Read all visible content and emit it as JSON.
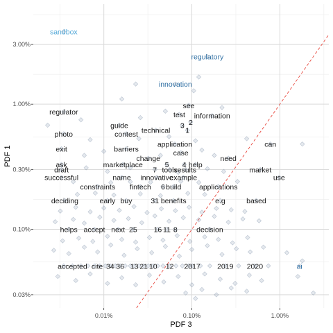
{
  "chart_data": {
    "type": "scatter",
    "title": "",
    "xlabel": "PDF 3",
    "ylabel": "PDF 1",
    "x_scale": "log10",
    "y_scale": "log10",
    "xlim": [
      1.58e-05,
      0.036
    ],
    "ylim": [
      0.000235,
      0.063
    ],
    "x_ticks": [
      {
        "value": 0.0001,
        "label": "0.01%"
      },
      {
        "value": 0.001,
        "label": "0.10%"
      },
      {
        "value": 0.01,
        "label": "1.00%"
      }
    ],
    "y_ticks": [
      {
        "value": 0.0003,
        "label": "0.03%"
      },
      {
        "value": 0.001,
        "label": "0.10%"
      },
      {
        "value": 0.003,
        "label": "0.30%"
      },
      {
        "value": 0.01,
        "label": "1.00%"
      },
      {
        "value": 0.03,
        "label": "3.00%"
      }
    ],
    "grid": true,
    "reference_line": {
      "type": "identity",
      "color": "#e8473d",
      "style": "dashed"
    },
    "point_color": "#8a9bb0",
    "colors": {
      "dark": "#1a1a1a",
      "blue": "#2f6fa3",
      "light_blue": "#52a8d8"
    },
    "words": [
      {
        "text": "sandbox",
        "x": 3.5e-05,
        "y": 0.038,
        "color": "light_blue"
      },
      {
        "text": "regulatory",
        "x": 0.0015,
        "y": 0.024,
        "color": "blue"
      },
      {
        "text": "innovation",
        "x": 0.00065,
        "y": 0.0145,
        "color": "blue"
      },
      {
        "text": "regulator",
        "x": 3.5e-05,
        "y": 0.0087,
        "color": "dark"
      },
      {
        "text": "test",
        "x": 0.00072,
        "y": 0.0083,
        "color": "dark"
      },
      {
        "text": "see",
        "x": 0.00092,
        "y": 0.0098,
        "color": "dark"
      },
      {
        "text": "information",
        "x": 0.0017,
        "y": 0.0081,
        "color": "dark"
      },
      {
        "text": "2",
        "x": 0.00097,
        "y": 0.0072,
        "color": "dark"
      },
      {
        "text": "3",
        "x": 0.00078,
        "y": 0.0068,
        "color": "dark"
      },
      {
        "text": "1",
        "x": 0.00089,
        "y": 0.0062,
        "color": "dark"
      },
      {
        "text": "guide",
        "x": 0.00015,
        "y": 0.0068,
        "color": "dark"
      },
      {
        "text": "technical",
        "x": 0.00039,
        "y": 0.0062,
        "color": "dark"
      },
      {
        "text": "photo",
        "x": 3.5e-05,
        "y": 0.0058,
        "color": "dark"
      },
      {
        "text": "contest",
        "x": 0.00018,
        "y": 0.0058,
        "color": "dark"
      },
      {
        "text": "application",
        "x": 0.00064,
        "y": 0.0048,
        "color": "dark"
      },
      {
        "text": "can",
        "x": 0.0078,
        "y": 0.0048,
        "color": "dark"
      },
      {
        "text": "exit",
        "x": 3.3e-05,
        "y": 0.0044,
        "color": "dark"
      },
      {
        "text": "barriers",
        "x": 0.00018,
        "y": 0.0044,
        "color": "dark"
      },
      {
        "text": "case",
        "x": 0.00075,
        "y": 0.0041,
        "color": "dark"
      },
      {
        "text": "change",
        "x": 0.00032,
        "y": 0.0037,
        "color": "dark"
      },
      {
        "text": "need",
        "x": 0.0026,
        "y": 0.0037,
        "color": "dark"
      },
      {
        "text": "ask",
        "x": 3.3e-05,
        "y": 0.0033,
        "color": "dark"
      },
      {
        "text": "marketplace",
        "x": 0.000165,
        "y": 0.0033,
        "color": "dark"
      },
      {
        "text": "5",
        "x": 0.00052,
        "y": 0.0033,
        "color": "dark"
      },
      {
        "text": "4",
        "x": 0.00082,
        "y": 0.0033,
        "color": "dark"
      },
      {
        "text": "help",
        "x": 0.0011,
        "y": 0.0033,
        "color": "dark"
      },
      {
        "text": "draft",
        "x": 3.3e-05,
        "y": 0.003,
        "color": "dark"
      },
      {
        "text": "7",
        "x": 0.00038,
        "y": 0.003,
        "color": "dark"
      },
      {
        "text": "tools",
        "x": 0.00056,
        "y": 0.003,
        "color": "dark"
      },
      {
        "text": "results",
        "x": 0.00085,
        "y": 0.003,
        "color": "dark"
      },
      {
        "text": "market",
        "x": 0.006,
        "y": 0.003,
        "color": "dark"
      },
      {
        "text": "successful",
        "x": 3.3e-05,
        "y": 0.0026,
        "color": "dark"
      },
      {
        "text": "name",
        "x": 0.00016,
        "y": 0.0026,
        "color": "dark"
      },
      {
        "text": "innovative",
        "x": 0.0004,
        "y": 0.0026,
        "color": "dark"
      },
      {
        "text": "example",
        "x": 0.0008,
        "y": 0.0026,
        "color": "dark"
      },
      {
        "text": "use",
        "x": 0.0098,
        "y": 0.0026,
        "color": "dark"
      },
      {
        "text": "constraints",
        "x": 8.5e-05,
        "y": 0.0022,
        "color": "dark"
      },
      {
        "text": "fintech",
        "x": 0.00026,
        "y": 0.0022,
        "color": "dark"
      },
      {
        "text": "6",
        "x": 0.00047,
        "y": 0.0022,
        "color": "dark"
      },
      {
        "text": "build",
        "x": 0.00062,
        "y": 0.0022,
        "color": "dark"
      },
      {
        "text": "applications",
        "x": 0.002,
        "y": 0.0022,
        "color": "dark"
      },
      {
        "text": "deciding",
        "x": 3.6e-05,
        "y": 0.0017,
        "color": "dark"
      },
      {
        "text": "early",
        "x": 0.00011,
        "y": 0.0017,
        "color": "dark"
      },
      {
        "text": "buy",
        "x": 0.00018,
        "y": 0.0017,
        "color": "dark"
      },
      {
        "text": "31",
        "x": 0.00038,
        "y": 0.0017,
        "color": "dark"
      },
      {
        "text": "benefits",
        "x": 0.00062,
        "y": 0.0017,
        "color": "dark"
      },
      {
        "text": "e.g",
        "x": 0.0021,
        "y": 0.0017,
        "color": "dark"
      },
      {
        "text": "based",
        "x": 0.0054,
        "y": 0.0017,
        "color": "dark"
      },
      {
        "text": "helps",
        "x": 4e-05,
        "y": 0.001,
        "color": "dark"
      },
      {
        "text": "accept",
        "x": 7.8e-05,
        "y": 0.001,
        "color": "dark"
      },
      {
        "text": "next",
        "x": 0.000145,
        "y": 0.001,
        "color": "dark"
      },
      {
        "text": "25",
        "x": 0.000215,
        "y": 0.001,
        "color": "dark"
      },
      {
        "text": "16",
        "x": 0.00041,
        "y": 0.001,
        "color": "dark"
      },
      {
        "text": "11",
        "x": 0.00052,
        "y": 0.001,
        "color": "dark"
      },
      {
        "text": "8",
        "x": 0.00065,
        "y": 0.001,
        "color": "dark"
      },
      {
        "text": "decision",
        "x": 0.0016,
        "y": 0.001,
        "color": "dark"
      },
      {
        "text": "accepted",
        "x": 4.4e-05,
        "y": 0.00051,
        "color": "dark"
      },
      {
        "text": "cite",
        "x": 8.4e-05,
        "y": 0.00051,
        "color": "dark"
      },
      {
        "text": "34",
        "x": 0.000118,
        "y": 0.00051,
        "color": "dark"
      },
      {
        "text": "36",
        "x": 0.000153,
        "y": 0.00051,
        "color": "dark"
      },
      {
        "text": "13",
        "x": 0.000222,
        "y": 0.00051,
        "color": "dark"
      },
      {
        "text": "21",
        "x": 0.000284,
        "y": 0.00051,
        "color": "dark"
      },
      {
        "text": "10",
        "x": 0.000363,
        "y": 0.00051,
        "color": "dark"
      },
      {
        "text": "12",
        "x": 0.00056,
        "y": 0.00051,
        "color": "dark"
      },
      {
        "text": "2017",
        "x": 0.00101,
        "y": 0.00051,
        "color": "dark"
      },
      {
        "text": "2019",
        "x": 0.0024,
        "y": 0.00051,
        "color": "dark"
      },
      {
        "text": "2020",
        "x": 0.0052,
        "y": 0.00051,
        "color": "dark"
      },
      {
        "text": "ai",
        "x": 0.0167,
        "y": 0.00051,
        "color": "blue"
      }
    ],
    "points": [
      [
        3.5e-05,
        0.00051
      ],
      [
        4.4e-05,
        0.00051
      ],
      [
        5.5e-05,
        0.00051
      ],
      [
        6.6e-05,
        0.00051
      ],
      [
        7.8e-05,
        0.00051
      ],
      [
        9e-05,
        0.00051
      ],
      [
        0.000104,
        0.00051
      ],
      [
        0.000118,
        0.00051
      ],
      [
        0.000135,
        0.00051
      ],
      [
        0.000153,
        0.00051
      ],
      [
        0.000175,
        0.00051
      ],
      [
        0.0002,
        0.00051
      ],
      [
        0.000222,
        0.00051
      ],
      [
        0.00025,
        0.00051
      ],
      [
        0.000284,
        0.00051
      ],
      [
        0.00032,
        0.00051
      ],
      [
        0.000363,
        0.00051
      ],
      [
        0.00041,
        0.00051
      ],
      [
        0.00047,
        0.00051
      ],
      [
        0.00056,
        0.00051
      ],
      [
        0.00066,
        0.00051
      ],
      [
        0.00078,
        0.00051
      ],
      [
        0.00092,
        0.00051
      ],
      [
        0.00101,
        0.00051
      ],
      [
        0.00125,
        0.00051
      ],
      [
        0.0016,
        0.00051
      ],
      [
        0.0024,
        0.00051
      ],
      [
        0.0034,
        0.00051
      ],
      [
        0.0052,
        0.00051
      ],
      [
        0.0074,
        0.00051
      ],
      [
        0.0167,
        0.00051
      ],
      [
        3e-05,
        0.00042
      ],
      [
        4.8e-05,
        0.00039
      ],
      [
        7e-05,
        0.00044
      ],
      [
        0.00011,
        0.00037
      ],
      [
        0.00016,
        0.00041
      ],
      [
        0.00023,
        0.00036
      ],
      [
        0.00033,
        0.00043
      ],
      [
        0.00048,
        0.00038
      ],
      [
        0.0007,
        0.00042
      ],
      [
        0.001,
        0.00036
      ],
      [
        0.0014,
        0.00044
      ],
      [
        0.0021,
        0.0004
      ],
      [
        0.0031,
        0.00037
      ],
      [
        0.0045,
        0.00043
      ],
      [
        0.0062,
        0.00039
      ],
      [
        0.00085,
        0.00031
      ],
      [
        0.0013,
        0.00033
      ],
      [
        0.0019,
        0.0003
      ],
      [
        0.0028,
        0.00034
      ],
      [
        0.0042,
        0.00032
      ],
      [
        0.0011,
        0.00028
      ],
      [
        0.016,
        0.00042
      ],
      [
        0.024,
        0.00031
      ],
      [
        0.018,
        0.00056
      ],
      [
        2.7e-05,
        0.00068
      ],
      [
        4e-05,
        0.00064
      ],
      [
        6e-05,
        0.00072
      ],
      [
        8.5e-05,
        0.00066
      ],
      [
        0.00012,
        0.00075
      ],
      [
        0.00017,
        0.00062
      ],
      [
        0.00024,
        0.0007
      ],
      [
        0.00035,
        0.00065
      ],
      [
        0.0005,
        0.00073
      ],
      [
        0.00072,
        0.00061
      ],
      [
        0.001,
        0.00069
      ],
      [
        0.0015,
        0.00074
      ],
      [
        0.0022,
        0.00063
      ],
      [
        0.0032,
        0.0007
      ],
      [
        0.0046,
        0.00066
      ],
      [
        0.0065,
        0.00072
      ],
      [
        0.012,
        0.00065
      ],
      [
        3.4e-05,
        0.00081
      ],
      [
        5.2e-05,
        0.00085
      ],
      [
        7.5e-05,
        0.0008
      ],
      [
        0.00011,
        0.00088
      ],
      [
        0.00016,
        0.00083
      ],
      [
        0.00023,
        0.00079
      ],
      [
        0.00033,
        0.00086
      ],
      [
        0.00047,
        0.00082
      ],
      [
        0.00068,
        0.00089
      ],
      [
        0.00095,
        0.0008
      ],
      [
        0.0014,
        0.00087
      ],
      [
        0.002,
        0.00083
      ],
      [
        0.0029,
        0.00078
      ],
      [
        0.0043,
        0.00086
      ],
      [
        4e-05,
        0.001
      ],
      [
        7.8e-05,
        0.001
      ],
      [
        0.000145,
        0.001
      ],
      [
        0.000215,
        0.001
      ],
      [
        0.00041,
        0.001
      ],
      [
        0.00052,
        0.001
      ],
      [
        0.00065,
        0.001
      ],
      [
        0.0016,
        0.001
      ],
      [
        2.8e-05,
        0.00115
      ],
      [
        4.5e-05,
        0.0012
      ],
      [
        6e-05,
        0.00112
      ],
      [
        9e-05,
        0.00125
      ],
      [
        0.00013,
        0.00118
      ],
      [
        0.00019,
        0.00122
      ],
      [
        0.00027,
        0.00113
      ],
      [
        0.00038,
        0.00128
      ],
      [
        0.00055,
        0.00116
      ],
      [
        0.0008,
        0.00124
      ],
      [
        0.0012,
        0.00119
      ],
      [
        0.0018,
        0.00127
      ],
      [
        0.0026,
        0.00114
      ],
      [
        0.0038,
        0.00121
      ],
      [
        0.0058,
        0.00117
      ],
      [
        3.2e-05,
        0.0014
      ],
      [
        4.8e-05,
        0.0015
      ],
      [
        7e-05,
        0.00138
      ],
      [
        0.0001,
        0.00148
      ],
      [
        0.00015,
        0.00142
      ],
      [
        0.00022,
        0.00152
      ],
      [
        0.00031,
        0.00136
      ],
      [
        0.00045,
        0.00146
      ],
      [
        0.00065,
        0.00141
      ],
      [
        0.00093,
        0.0015
      ],
      [
        0.0013,
        0.00137
      ],
      [
        0.0019,
        0.00147
      ],
      [
        0.0028,
        0.00143
      ],
      [
        0.004,
        0.00139
      ],
      [
        3.6e-05,
        0.0017
      ],
      [
        0.00011,
        0.0017
      ],
      [
        0.00018,
        0.0017
      ],
      [
        0.00038,
        0.0017
      ],
      [
        0.00062,
        0.0017
      ],
      [
        0.0021,
        0.0017
      ],
      [
        0.0054,
        0.0017
      ],
      [
        5e-05,
        0.0019
      ],
      [
        8e-05,
        0.00195
      ],
      [
        0.00013,
        0.00188
      ],
      [
        0.00026,
        0.00192
      ],
      [
        0.00044,
        0.00186
      ],
      [
        0.0009,
        0.00194
      ],
      [
        0.0014,
        0.0019
      ],
      [
        8.5e-05,
        0.0022
      ],
      [
        0.00026,
        0.0022
      ],
      [
        0.00047,
        0.0022
      ],
      [
        0.00062,
        0.0022
      ],
      [
        0.002,
        0.0022
      ],
      [
        4.5e-05,
        0.0024
      ],
      [
        0.00012,
        0.00236
      ],
      [
        0.0002,
        0.0024
      ],
      [
        0.00034,
        0.00238
      ],
      [
        0.00075,
        0.00242
      ],
      [
        0.0012,
        0.00237
      ],
      [
        0.0033,
        0.00241
      ],
      [
        3.3e-05,
        0.0026
      ],
      [
        0.00016,
        0.0026
      ],
      [
        0.0004,
        0.0026
      ],
      [
        0.0008,
        0.0026
      ],
      [
        0.0098,
        0.0026
      ],
      [
        3.3e-05,
        0.003
      ],
      [
        0.00038,
        0.003
      ],
      [
        0.00056,
        0.003
      ],
      [
        0.00085,
        0.003
      ],
      [
        0.006,
        0.003
      ],
      [
        3.3e-05,
        0.0033
      ],
      [
        0.000165,
        0.0033
      ],
      [
        0.00052,
        0.0033
      ],
      [
        0.00082,
        0.0033
      ],
      [
        0.0011,
        0.0033
      ],
      [
        6.3e-05,
        0.0031
      ],
      [
        0.00011,
        0.0029
      ],
      [
        0.0002,
        0.0031
      ],
      [
        0.0007,
        0.00285
      ],
      [
        0.0015,
        0.00305
      ],
      [
        0.0023,
        0.0029
      ],
      [
        0.00032,
        0.0037
      ],
      [
        0.0026,
        0.0037
      ],
      [
        3.3e-05,
        0.0044
      ],
      [
        0.00018,
        0.0044
      ],
      [
        0.00075,
        0.0041
      ],
      [
        6e-05,
        0.0039
      ],
      [
        0.0001,
        0.0042
      ],
      [
        0.00044,
        0.0039
      ],
      [
        0.0013,
        0.0043
      ],
      [
        0.0018,
        0.0039
      ],
      [
        0.00064,
        0.0048
      ],
      [
        0.0078,
        0.0048
      ],
      [
        3.5e-05,
        0.0058
      ],
      [
        0.00018,
        0.0058
      ],
      [
        0.00015,
        0.0068
      ],
      [
        0.00039,
        0.0062
      ],
      [
        7e-05,
        0.0052
      ],
      [
        0.00025,
        0.0053
      ],
      [
        0.00055,
        0.0055
      ],
      [
        0.0011,
        0.0051
      ],
      [
        0.0042,
        0.0053
      ],
      [
        3.5e-05,
        0.0087
      ],
      [
        0.00072,
        0.0083
      ],
      [
        0.00097,
        0.0072
      ],
      [
        0.00078,
        0.0068
      ],
      [
        0.00089,
        0.0062
      ],
      [
        0.00092,
        0.0098
      ],
      [
        0.0017,
        0.0081
      ],
      [
        2.3e-05,
        0.0068
      ],
      [
        5.5e-05,
        0.0075
      ],
      [
        0.00026,
        0.0078
      ],
      [
        0.0005,
        0.0088
      ],
      [
        0.00065,
        0.0145
      ],
      [
        0.0012,
        0.0165
      ],
      [
        0.00016,
        0.011
      ],
      [
        0.00105,
        0.0128
      ],
      [
        0.0015,
        0.024
      ],
      [
        3.5e-05,
        0.038
      ],
      [
        0.018,
        0.0048
      ],
      [
        0.0022,
        0.0094
      ],
      [
        0.00023,
        0.0145
      ]
    ]
  }
}
